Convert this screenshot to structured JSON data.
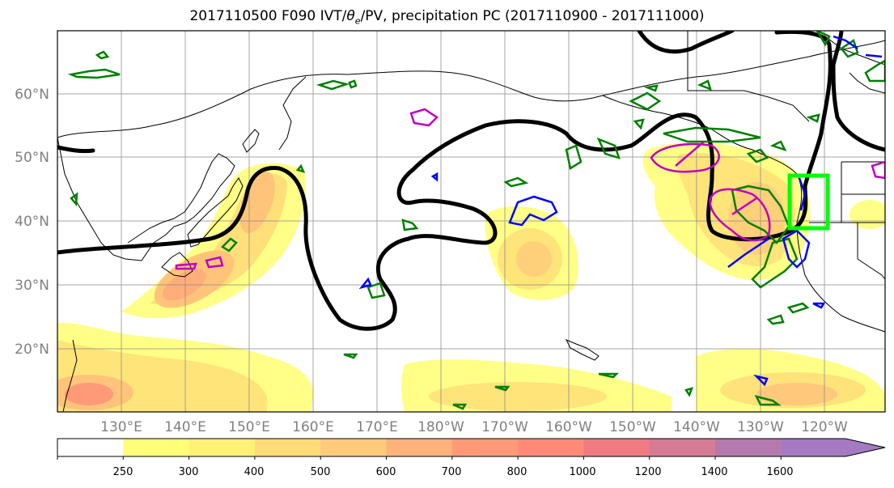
{
  "title": {
    "prefix": "2017110500 F090 IVT/",
    "theta": "θ",
    "sub": "e",
    "suffix": "/PV, precipitation PC (2017110900 - 2017111000)"
  },
  "map": {
    "lat_labels": [
      "60°N",
      "50°N",
      "40°N",
      "30°N",
      "20°N"
    ],
    "lon_labels": [
      "130°E",
      "140°E",
      "150°E",
      "160°E",
      "170°E",
      "180°W",
      "170°W",
      "160°W",
      "150°W",
      "140°W",
      "130°W",
      "120°W"
    ],
    "highlight_box_color": "#00ff00",
    "pv_contour_color": "#000000",
    "green_contour_color": "#008000",
    "magenta_contour_color": "#c000c0",
    "blue_contour_color": "#0000ff"
  },
  "colorbar": {
    "levels": [
      "250",
      "300",
      "400",
      "500",
      "600",
      "700",
      "800",
      "1000",
      "1200",
      "1400",
      "1600"
    ],
    "colors": [
      "#ffffff",
      "#ffff77",
      "#fff076",
      "#ffdc78",
      "#ffcb7a",
      "#ffb27a",
      "#ff9a78",
      "#ff8a78",
      "#f07a82",
      "#d77a96",
      "#b47aae",
      "#a47ac2"
    ]
  }
}
